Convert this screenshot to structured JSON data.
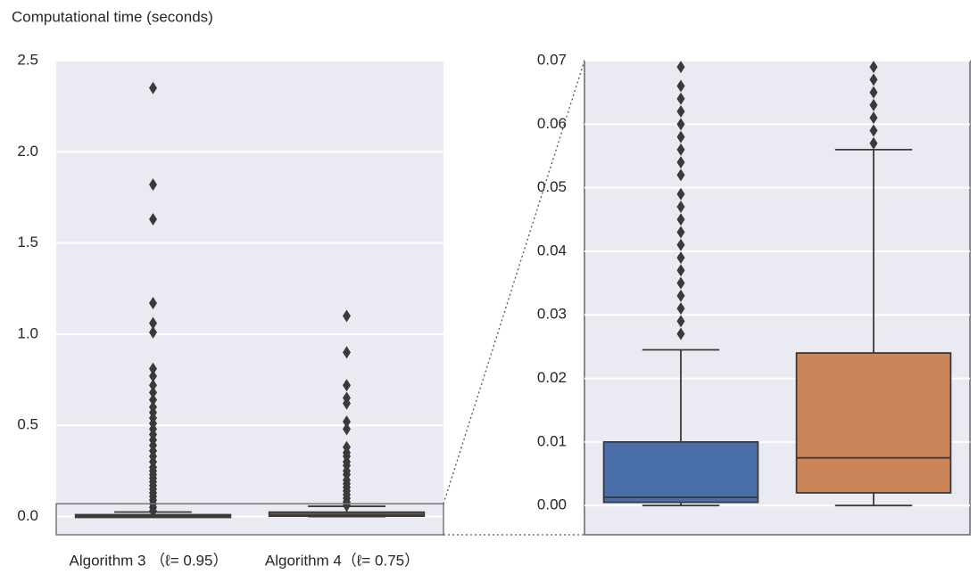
{
  "y_axis_title": "Computational time (seconds)",
  "chart_data": [
    {
      "type": "box",
      "ylim": [
        -0.1,
        2.5
      ],
      "yticks": [
        {
          "value": 0,
          "label": "0.0"
        },
        0.5,
        {
          "value": 1,
          "label": "1.0"
        },
        1.5,
        {
          "value": 2,
          "label": "2.0"
        },
        2.5
      ],
      "grid": true,
      "categories": [
        "Algorithm 3 （ℓ= 0.95）",
        "Algorithm 4（ℓ= 0.75）"
      ],
      "boxes": [
        {
          "color": "#3d4f6e",
          "whislo": 0,
          "q1": 0.0005,
          "med": 0.0013,
          "q3": 0.01,
          "whishi": 0.0245,
          "fliers": [
            0.03,
            0.05,
            0.07,
            0.09,
            0.11,
            0.13,
            0.15,
            0.17,
            0.19,
            0.21,
            0.23,
            0.25,
            0.27,
            0.3,
            0.33,
            0.36,
            0.39,
            0.42,
            0.45,
            0.48,
            0.51,
            0.54,
            0.57,
            0.6,
            0.64,
            0.68,
            0.72,
            0.77,
            0.81,
            1.01,
            1.06,
            1.17,
            1.63,
            1.82,
            2.35
          ]
        },
        {
          "color": "#6e5640",
          "whislo": 0,
          "q1": 0.002,
          "med": 0.0075,
          "q3": 0.024,
          "whishi": 0.056,
          "fliers": [
            0.06,
            0.08,
            0.1,
            0.12,
            0.14,
            0.16,
            0.18,
            0.2,
            0.23,
            0.25,
            0.28,
            0.3,
            0.33,
            0.35,
            0.38,
            0.48,
            0.52,
            0.62,
            0.65,
            0.72,
            0.9,
            1.1
          ]
        }
      ]
    },
    {
      "type": "box",
      "ylim": [
        -0.0046,
        0.07
      ],
      "yticks": [
        {
          "value": 0,
          "label": "0.00"
        },
        0.01,
        0.02,
        0.03,
        0.04,
        0.05,
        0.06,
        0.07
      ],
      "grid": true,
      "categories": [
        null,
        null
      ],
      "boxes": [
        {
          "color": "#4a6ea9",
          "whislo": 0,
          "q1": 0.0005,
          "med": 0.0013,
          "q3": 0.01,
          "whishi": 0.0245,
          "fliers": [
            0.027,
            0.029,
            0.031,
            0.033,
            0.035,
            0.037,
            0.039,
            0.041,
            0.043,
            0.045,
            0.047,
            0.049,
            0.052,
            0.054,
            0.056,
            0.058,
            0.06,
            0.062,
            0.064,
            0.066,
            0.069
          ]
        },
        {
          "color": "#cc8459",
          "whislo": 0,
          "q1": 0.002,
          "med": 0.0075,
          "q3": 0.024,
          "whishi": 0.056,
          "fliers": [
            0.057,
            0.059,
            0.061,
            0.063,
            0.065,
            0.067,
            0.069
          ]
        }
      ]
    }
  ]
}
